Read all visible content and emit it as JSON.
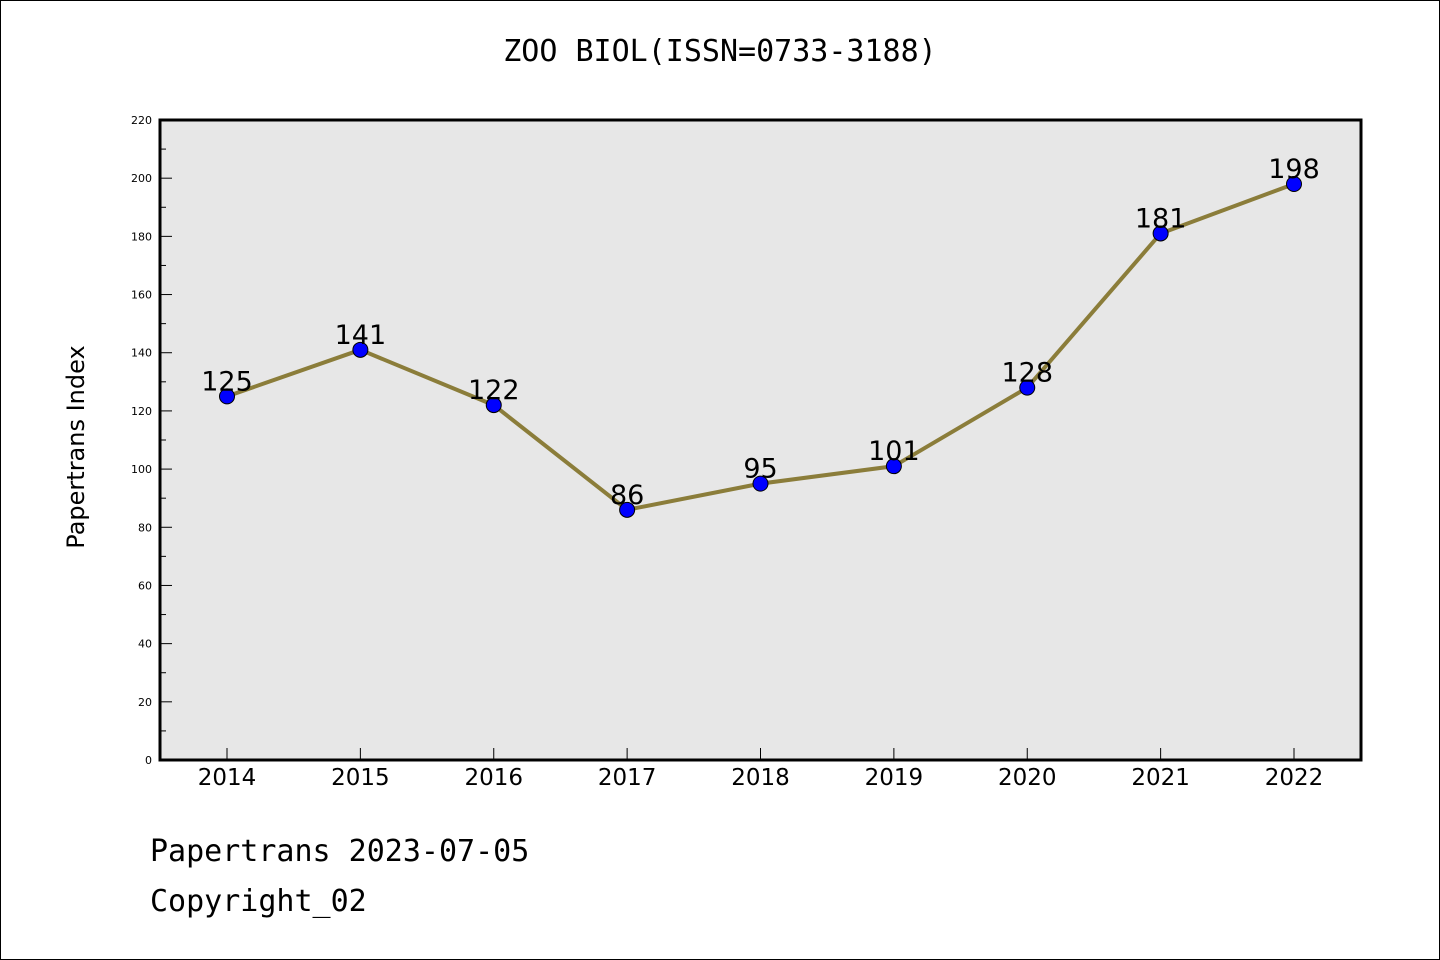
{
  "chart_data": {
    "type": "line",
    "title": "ZOO BIOL(ISSN=0733-3188)",
    "xlabel": "",
    "ylabel": "Papertrans Index",
    "categories": [
      "2014",
      "2015",
      "2016",
      "2017",
      "2018",
      "2019",
      "2020",
      "2021",
      "2022"
    ],
    "series": [
      {
        "values": [
          125,
          141,
          122,
          86,
          95,
          101,
          128,
          181,
          198
        ]
      }
    ],
    "ylim": [
      0,
      220
    ],
    "yticks": [
      "0",
      "20",
      "40",
      "60",
      "80",
      "100",
      "120",
      "140",
      "160",
      "180",
      "200",
      "220"
    ],
    "grid": false,
    "background": "#e7e7e7",
    "line_color": "#8b7d3a",
    "marker_color": "#0000ff"
  },
  "footer": {
    "line1": "Papertrans 2023-07-05",
    "line2": "Copyright_02"
  }
}
